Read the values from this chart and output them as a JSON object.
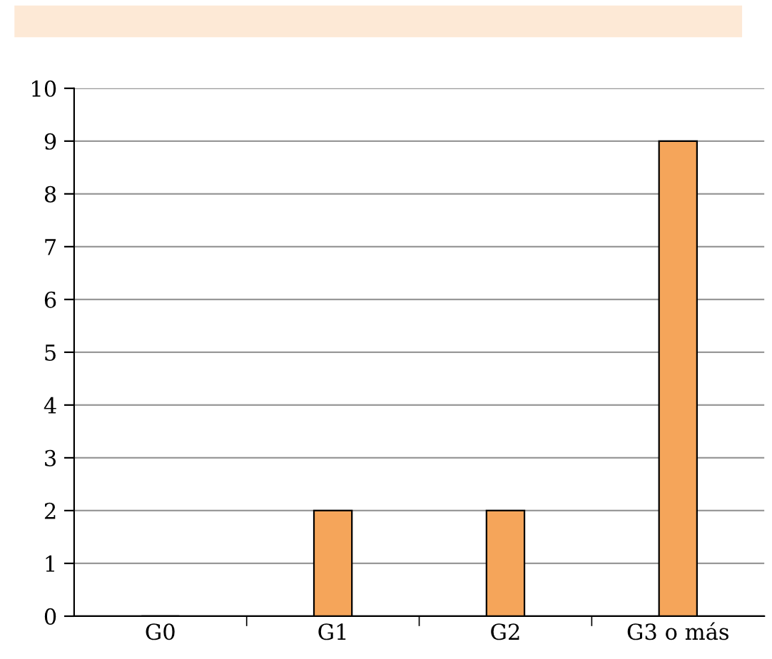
{
  "chart_data": {
    "type": "bar",
    "categories": [
      "G0",
      "G1",
      "G2",
      "G3 o más"
    ],
    "values": [
      0,
      2,
      2,
      9
    ],
    "color": "#f5a55a",
    "ylim": [
      0,
      10
    ],
    "yticks": [
      0,
      1,
      2,
      3,
      4,
      5,
      6,
      7,
      8,
      9,
      10
    ],
    "grid": "y"
  }
}
